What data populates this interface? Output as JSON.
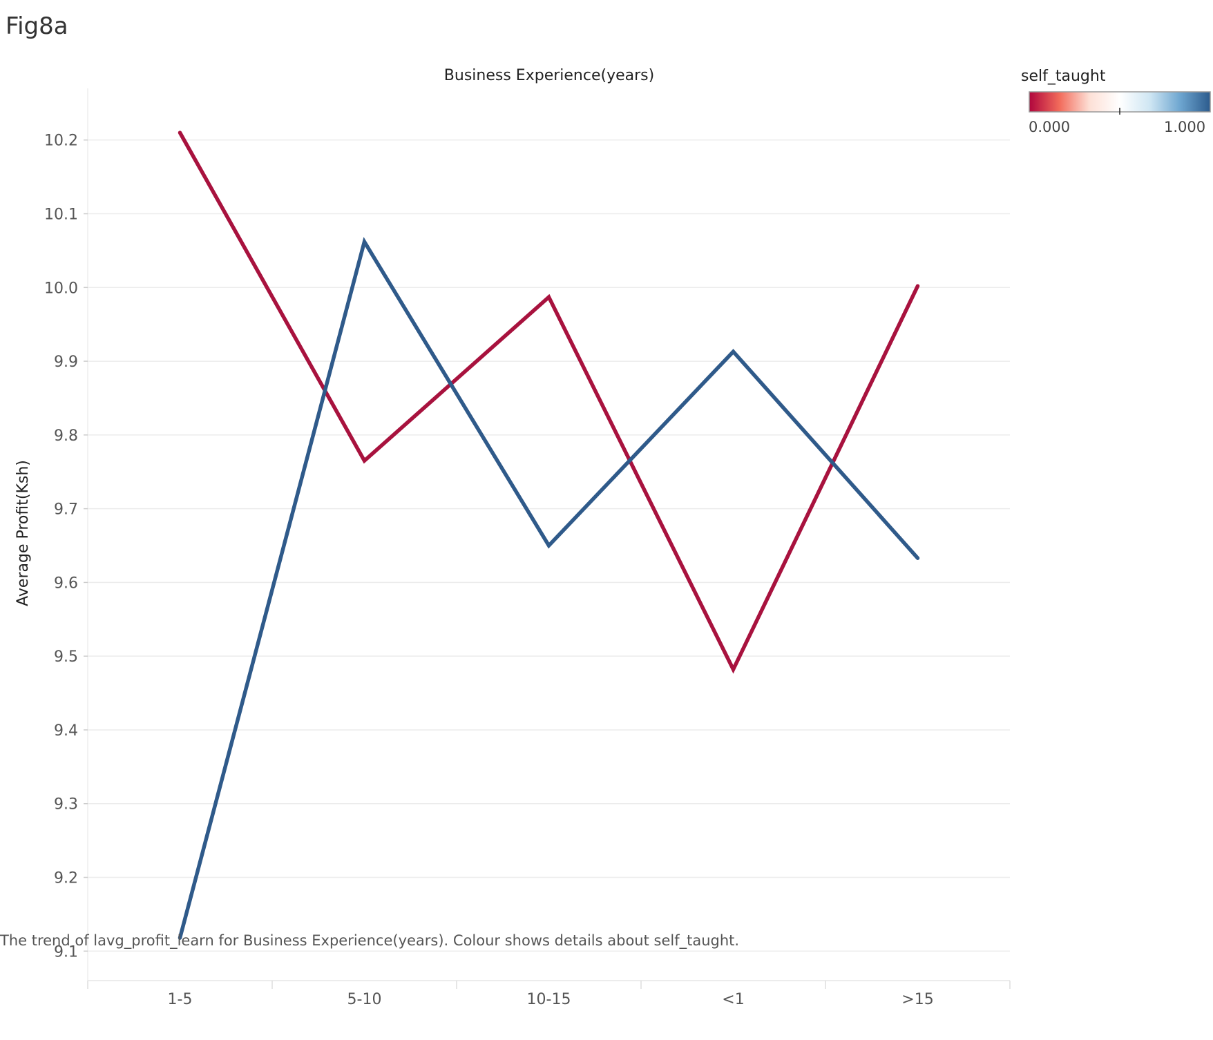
{
  "page": {
    "title": "Fig8a",
    "caption": "The trend of lavg_profit_learn for Business Experience(years).  Colour shows details about self_taught."
  },
  "legend": {
    "title": "self_taught",
    "min_label": "0.000",
    "max_label": "1.000",
    "gradient_colors": [
      "#b0063d",
      "#f26b5b",
      "#fde0d6",
      "#ffffff",
      "#cfe6f3",
      "#6ea6d0",
      "#2c5b8d"
    ]
  },
  "chart_data": {
    "type": "line",
    "title": "Business Experience(years)",
    "xlabel": "Business Experience(years)",
    "ylabel": "Average Profit(Ksh)",
    "categories": [
      "1-5",
      "5-10",
      "10-15",
      "<1",
      ">15"
    ],
    "ylim": [
      9.06,
      10.27
    ],
    "yticks": [
      "9.1",
      "9.2",
      "9.3",
      "9.4",
      "9.5",
      "9.6",
      "9.7",
      "9.8",
      "9.9",
      "10.0",
      "10.1",
      "10.2"
    ],
    "grid": true,
    "legend_position": "top-right",
    "series": [
      {
        "self_taught": 0,
        "color": "#a8123e",
        "values": [
          10.21,
          9.765,
          9.987,
          9.482,
          10.002
        ]
      },
      {
        "self_taught": 1,
        "color": "#2f5a8a",
        "values": [
          9.118,
          10.062,
          9.65,
          9.913,
          9.633
        ]
      }
    ]
  }
}
